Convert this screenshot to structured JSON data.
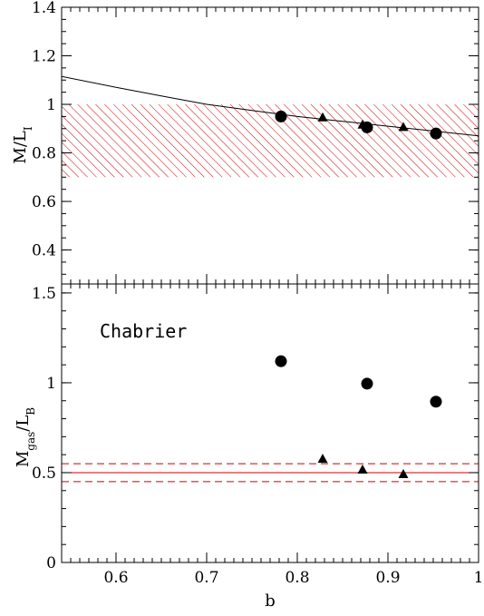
{
  "chart_data": [
    {
      "type": "scatter",
      "ylabel_main": "M/L",
      "ylabel_sub": "I",
      "xlim": [
        0.54,
        1.0
      ],
      "ylim": [
        0.26,
        1.4
      ],
      "yticks": [
        0.4,
        0.6,
        0.8,
        1,
        1.2,
        1.4
      ],
      "ytick_labels": [
        "0.4",
        "0.6",
        "0.8",
        "1",
        "1.2",
        "1.4"
      ],
      "band": {
        "y_low": 0.7,
        "y_high": 1.0,
        "color": "#cc0000",
        "fill": "hatched"
      },
      "curve": {
        "x": [
          0.54,
          0.6,
          0.65,
          0.7,
          0.75,
          0.8,
          0.85,
          0.9,
          0.95,
          1.0
        ],
        "y": [
          1.115,
          1.07,
          1.035,
          1.0,
          0.975,
          0.95,
          0.93,
          0.91,
          0.89,
          0.87
        ]
      },
      "series": [
        {
          "marker": "circle",
          "x": [
            0.782,
            0.877,
            0.953
          ],
          "y": [
            0.95,
            0.905,
            0.88
          ]
        },
        {
          "marker": "triangle",
          "x": [
            0.828,
            0.872,
            0.917
          ],
          "y": [
            0.945,
            0.915,
            0.905
          ]
        }
      ]
    },
    {
      "type": "scatter",
      "ylabel_main": "M",
      "ylabel_sub1": "gas",
      "ylabel_mid": "/L",
      "ylabel_sub2": "B",
      "annotation": "Chabrier",
      "xlabel": "b",
      "xlim": [
        0.54,
        1.0
      ],
      "ylim": [
        0,
        1.55
      ],
      "xticks": [
        0.6,
        0.7,
        0.8,
        0.9,
        1
      ],
      "xtick_labels": [
        "0.6",
        "0.7",
        "0.8",
        "0.9",
        "1"
      ],
      "yticks": [
        0,
        0.5,
        1,
        1.5
      ],
      "ytick_labels": [
        "0",
        "0.5",
        "1",
        "1.5"
      ],
      "hlines": [
        {
          "y": 0.5,
          "style": "solid",
          "color": "#cc0000"
        },
        {
          "y": 0.55,
          "style": "dashed",
          "color": "#cc0000"
        },
        {
          "y": 0.45,
          "style": "dashed",
          "color": "#cc0000"
        }
      ],
      "series": [
        {
          "marker": "circle",
          "x": [
            0.782,
            0.877,
            0.953
          ],
          "y": [
            1.12,
            0.995,
            0.895
          ]
        },
        {
          "marker": "triangle",
          "x": [
            0.828,
            0.872,
            0.917
          ],
          "y": [
            0.575,
            0.515,
            0.49
          ]
        }
      ]
    }
  ]
}
